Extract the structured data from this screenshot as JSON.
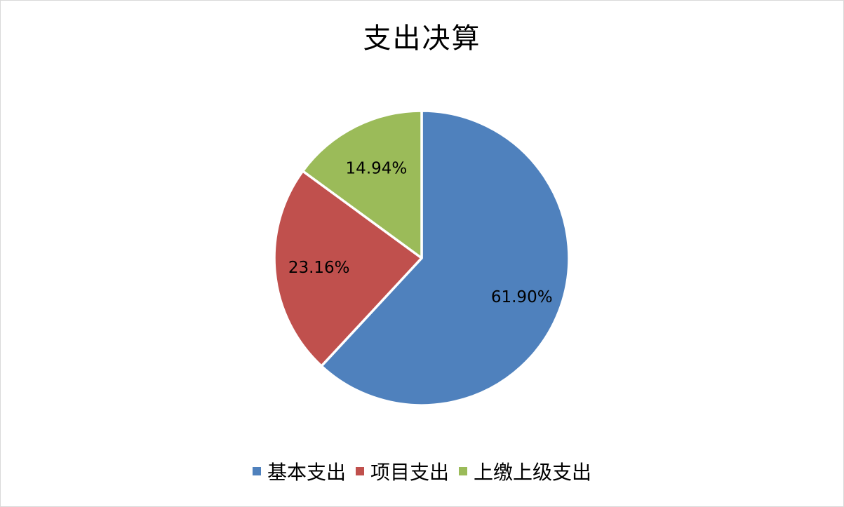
{
  "chart_data": {
    "type": "pie",
    "title": "支出决算",
    "categories": [
      "基本支出",
      "项目支出",
      "上缴上级支出"
    ],
    "values": [
      61.9,
      23.16,
      14.94
    ],
    "labels": [
      "61.90%",
      "23.16%",
      "14.94%"
    ],
    "colors": [
      "#4F81BD",
      "#C0504D",
      "#9BBB59"
    ],
    "legend_position": "bottom"
  }
}
